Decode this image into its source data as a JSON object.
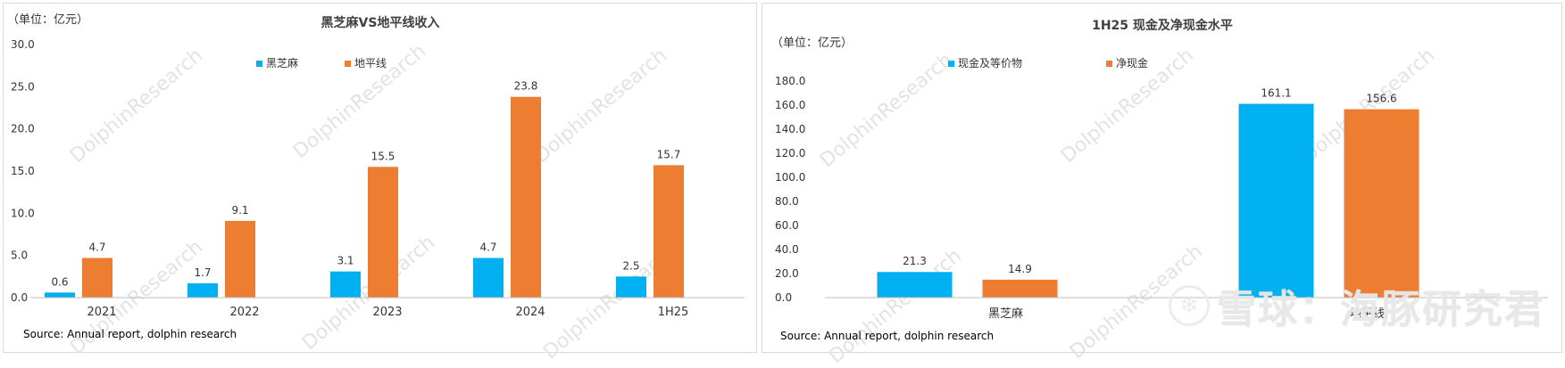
{
  "colors": {
    "blue": "#00B0F0",
    "orange": "#ED7D31",
    "axis": "#bfbfbf",
    "text": "#333333"
  },
  "watermark": {
    "text": "DolphinResearch"
  },
  "brand": {
    "logo_icon": "snowball-logo-icon",
    "text": "雪球：海豚研究君"
  },
  "chart_data": [
    {
      "type": "bar",
      "title": "黑芝麻VS地平线收入",
      "unit_label": "（单位：亿元）",
      "source": "Source: Annual report, dolphin research",
      "categories": [
        "2021",
        "2022",
        "2023",
        "2024",
        "1H25"
      ],
      "series": [
        {
          "name": "黑芝麻",
          "values": [
            0.6,
            1.7,
            3.1,
            4.7,
            2.5
          ]
        },
        {
          "name": "地平线",
          "values": [
            4.7,
            9.1,
            15.5,
            23.8,
            15.7
          ]
        }
      ],
      "ylim": [
        0,
        30
      ],
      "yticks": [
        "0.0",
        "5.0",
        "10.0",
        "15.0",
        "20.0",
        "25.0",
        "30.0"
      ],
      "legend": "top-center",
      "grid": false
    },
    {
      "type": "bar",
      "title": "1H25 现金及净现金水平",
      "unit_label": "（单位：亿元）",
      "source": "Source: Annual report, dolphin research",
      "categories": [
        "黑芝麻",
        "地平线"
      ],
      "series": [
        {
          "name": "现金及等价物",
          "values": [
            21.3,
            161.1
          ]
        },
        {
          "name": "净现金",
          "values": [
            14.9,
            156.6
          ]
        }
      ],
      "ylim": [
        0,
        180
      ],
      "yticks": [
        "0.0",
        "20.0",
        "40.0",
        "60.0",
        "80.0",
        "100.0",
        "120.0",
        "140.0",
        "160.0",
        "180.0"
      ],
      "legend": "top-center",
      "grid": false
    }
  ]
}
